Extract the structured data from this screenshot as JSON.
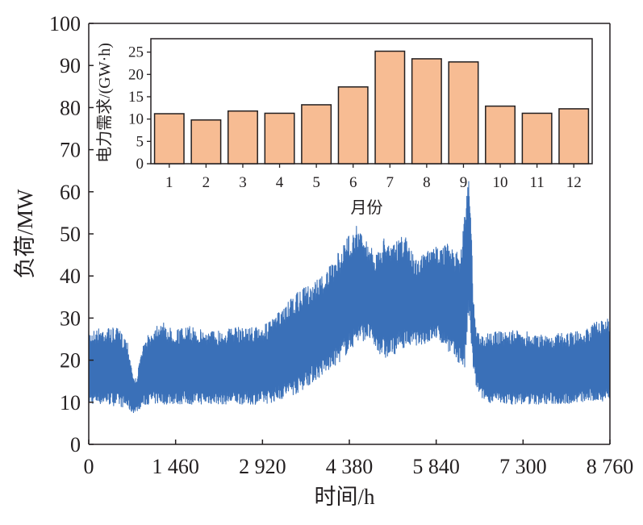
{
  "chart_data": [
    {
      "type": "line",
      "xlabel": "时间/h",
      "ylabel": "负荷/MW",
      "xlim": [
        0,
        8760
      ],
      "ylim": [
        0,
        100
      ],
      "x_ticks": [
        {
          "value": 0,
          "label": "0"
        },
        {
          "value": 1460,
          "label": "1 460"
        },
        {
          "value": 2920,
          "label": "2 920"
        },
        {
          "value": 4380,
          "label": "4 380"
        },
        {
          "value": 5840,
          "label": "5 840"
        },
        {
          "value": 7300,
          "label": "7 300"
        },
        {
          "value": 8760,
          "label": "8 760"
        }
      ],
      "y_ticks": [
        {
          "value": 0,
          "label": "0"
        },
        {
          "value": 10,
          "label": "10"
        },
        {
          "value": 20,
          "label": "20"
        },
        {
          "value": 30,
          "label": "30"
        },
        {
          "value": 40,
          "label": "40"
        },
        {
          "value": 50,
          "label": "50"
        },
        {
          "value": 60,
          "label": "60"
        },
        {
          "value": 70,
          "label": "70"
        },
        {
          "value": 80,
          "label": "80"
        },
        {
          "value": 90,
          "label": "90"
        },
        {
          "value": 100,
          "label": "100"
        }
      ],
      "grid": false,
      "series": [
        {
          "color": "#3a70b8",
          "envelope_x": [
            0,
            250,
            500,
            650,
            720,
            770,
            820,
            900,
            1000,
            1100,
            1200,
            1300,
            1460,
            1700,
            2000,
            2300,
            2600,
            2920,
            3100,
            3300,
            3500,
            3700,
            3900,
            4100,
            4250,
            4380,
            4500,
            4700,
            4850,
            5000,
            5100,
            5300,
            5500,
            5700,
            5840,
            6000,
            6150,
            6250,
            6320,
            6380,
            6420,
            6460,
            6520,
            6600,
            6700,
            7000,
            7300,
            7600,
            8000,
            8300,
            8500,
            8760
          ],
          "upper": [
            27,
            28,
            27.5,
            25,
            19,
            15,
            17,
            23,
            26,
            28,
            30,
            28,
            27.5,
            28,
            27,
            27.5,
            28,
            28,
            30,
            33,
            36,
            38,
            40,
            43,
            47,
            50,
            52,
            48,
            45,
            51,
            47,
            50,
            44,
            46,
            47,
            48,
            46,
            45,
            58,
            65,
            58,
            36,
            27,
            26,
            26.5,
            27,
            27,
            26,
            26.5,
            27,
            29,
            30
          ],
          "lower": [
            9.5,
            9.5,
            9,
            8.5,
            7.5,
            7.5,
            8,
            9,
            9.5,
            9.5,
            9.5,
            9.5,
            9.5,
            9.5,
            9.5,
            9.5,
            9.5,
            9.5,
            10,
            11,
            12,
            14,
            16,
            18,
            20,
            22,
            24,
            25,
            22,
            20,
            21,
            23,
            23.5,
            24,
            25,
            23,
            20,
            19,
            17,
            30,
            25,
            18,
            13,
            11,
            10,
            9.5,
            9.5,
            9.5,
            9.5,
            10,
            10,
            10.5
          ]
        }
      ]
    },
    {
      "type": "bar",
      "xlabel": "月份",
      "ylabel": "电力需求/(GW·h)",
      "categories": [
        "1",
        "2",
        "3",
        "4",
        "5",
        "6",
        "7",
        "8",
        "9",
        "10",
        "11",
        "12"
      ],
      "values": [
        11.2,
        9.8,
        11.8,
        11.3,
        13.2,
        17.2,
        25.2,
        23.5,
        22.8,
        12.9,
        11.3,
        12.3
      ],
      "ylim": [
        0,
        28
      ],
      "y_ticks": [
        {
          "value": 0,
          "label": "0"
        },
        {
          "value": 5,
          "label": "5"
        },
        {
          "value": 10,
          "label": "10"
        },
        {
          "value": 15,
          "label": "15"
        },
        {
          "value": 20,
          "label": "20"
        },
        {
          "value": 25,
          "label": "25"
        }
      ],
      "bar_color": "#f7bc93",
      "edge_color": "#231f20",
      "grid": false
    }
  ]
}
